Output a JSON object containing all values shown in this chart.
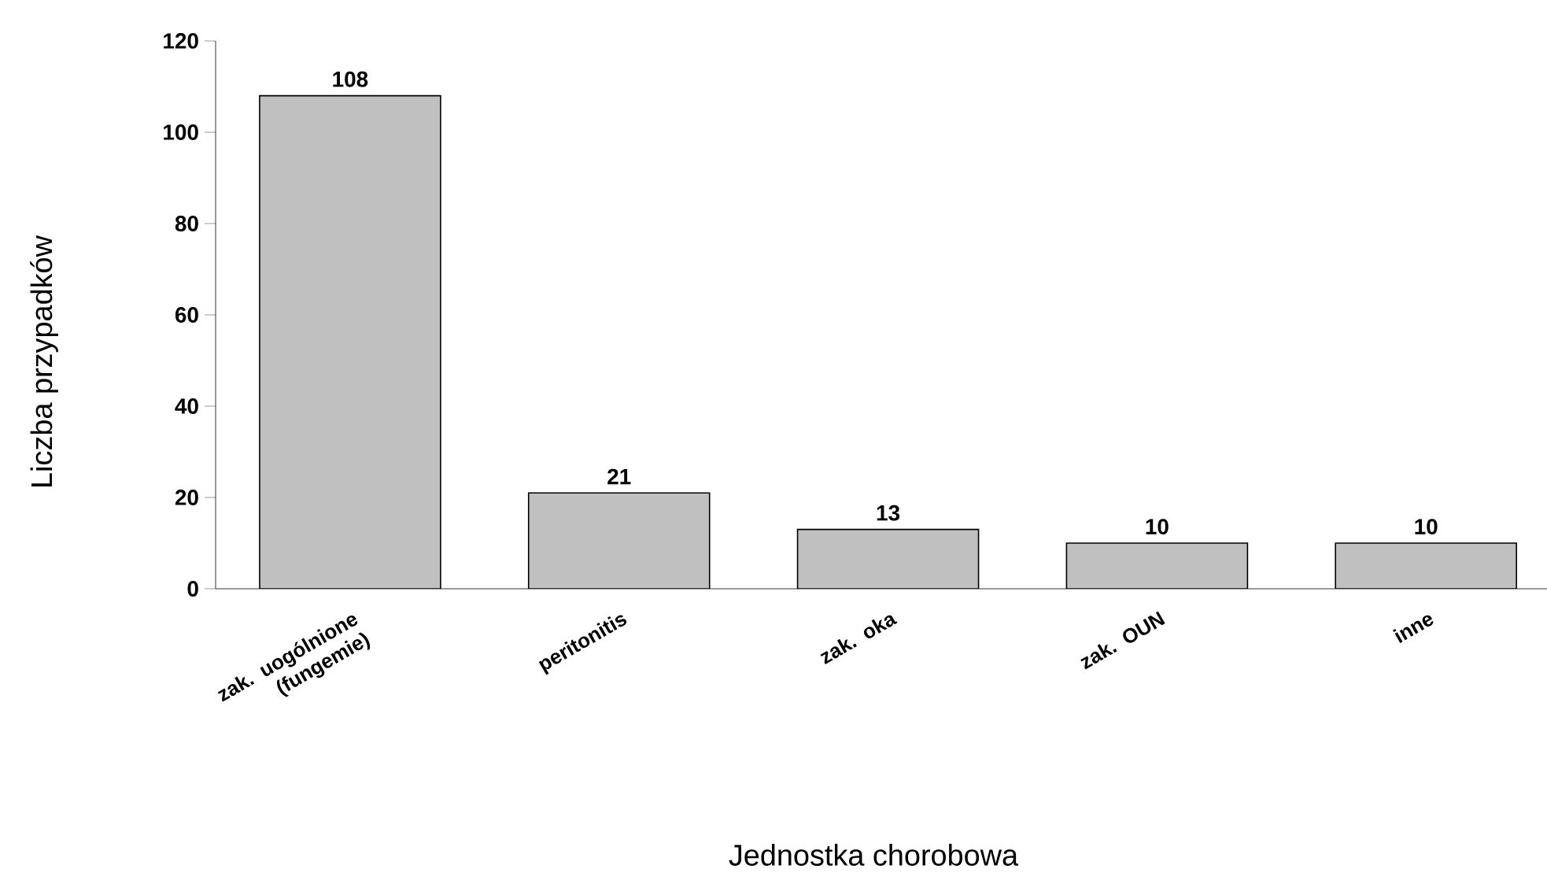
{
  "chart_data": {
    "type": "bar",
    "xlabel": "Jednostka chorobowa",
    "ylabel": "Liczba przypadków",
    "categories": [
      "zak. uogólnione (fungemie)",
      "peritonitis",
      "zak. oka",
      "zak. OUN",
      "inne"
    ],
    "values": [
      108,
      21,
      13,
      10,
      10
    ],
    "color": "#c0c0c0",
    "ylim": [
      0,
      120
    ],
    "yticks": [
      0,
      20,
      40,
      60,
      80,
      100,
      120
    ],
    "data_labels": true,
    "grid": false
  }
}
